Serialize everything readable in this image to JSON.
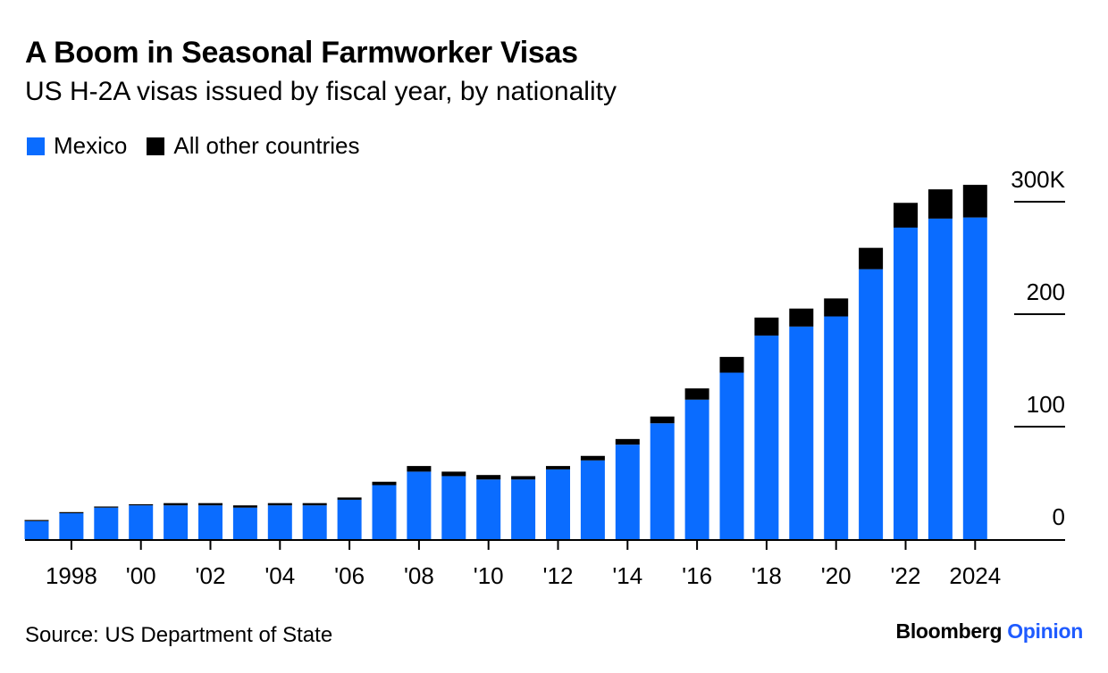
{
  "title": "A Boom in Seasonal Farmworker Visas",
  "subtitle": "US H-2A visas issued by fiscal year, by nationality",
  "source": "Source: US Department of State",
  "brand": {
    "name": "Bloomberg",
    "section": "Opinion"
  },
  "colors": {
    "mexico": "#0a6cff",
    "other": "#000000",
    "brand_accent": "#1f5bff"
  },
  "chart_data": {
    "type": "bar",
    "stacked": true,
    "x": [
      1997,
      1998,
      1999,
      2000,
      2001,
      2002,
      2003,
      2004,
      2005,
      2006,
      2007,
      2008,
      2009,
      2010,
      2011,
      2012,
      2013,
      2014,
      2015,
      2016,
      2017,
      2018,
      2019,
      2020,
      2021,
      2022,
      2023,
      2024
    ],
    "series": [
      {
        "name": "Mexico",
        "values": [
          16,
          23,
          28,
          30,
          30,
          30,
          28,
          30,
          30,
          35,
          48,
          60,
          56,
          53,
          53,
          62,
          70,
          84,
          103,
          124,
          148,
          181,
          189,
          198,
          240,
          277,
          285,
          286
        ]
      },
      {
        "name": "All other countries",
        "values": [
          1,
          1,
          1,
          1,
          2,
          2,
          2,
          2,
          2,
          2,
          3,
          5,
          4,
          4,
          3,
          3,
          4,
          5,
          6,
          10,
          14,
          16,
          16,
          16,
          19,
          22,
          26,
          29
        ]
      }
    ],
    "xtick_labels": [
      {
        "year": 1998,
        "label": "1998"
      },
      {
        "year": 2000,
        "label": "'00"
      },
      {
        "year": 2002,
        "label": "'02"
      },
      {
        "year": 2004,
        "label": "'04"
      },
      {
        "year": 2006,
        "label": "'06"
      },
      {
        "year": 2008,
        "label": "'08"
      },
      {
        "year": 2010,
        "label": "'10"
      },
      {
        "year": 2012,
        "label": "'12"
      },
      {
        "year": 2014,
        "label": "'14"
      },
      {
        "year": 2016,
        "label": "'16"
      },
      {
        "year": 2018,
        "label": "'18"
      },
      {
        "year": 2020,
        "label": "'20"
      },
      {
        "year": 2022,
        "label": "'22"
      },
      {
        "year": 2024,
        "label": "2024"
      }
    ],
    "ytick_labels": [
      {
        "value": 0,
        "label": "0"
      },
      {
        "value": 100,
        "label": "100"
      },
      {
        "value": 200,
        "label": "200"
      },
      {
        "value": 300,
        "label": "300K"
      }
    ],
    "ylim": [
      0,
      300
    ],
    "xlabel": "",
    "ylabel": "",
    "legend_position": "top-left",
    "grid": false
  }
}
